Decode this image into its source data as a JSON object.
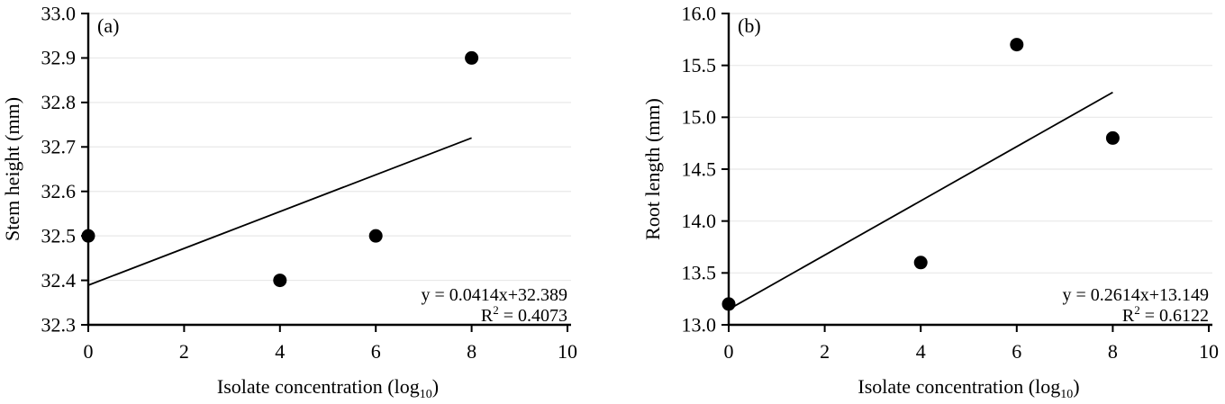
{
  "figure": {
    "background": "#ffffff",
    "colors": {
      "axis": "#000000",
      "grid": "#e8e8e8",
      "point": "#000000",
      "trendline": "#000000",
      "text": "#000000"
    }
  },
  "chart_data": [
    {
      "type": "scatter",
      "panel_label": "(a)",
      "ylabel": "Stem height (mm)",
      "xlabel_main": "Isolate concentration (log",
      "xlabel_sub": "10",
      "xlabel_close": ")",
      "x": [
        0,
        4,
        6,
        8
      ],
      "y": [
        32.5,
        32.4,
        32.5,
        32.9
      ],
      "xlim": [
        0,
        10
      ],
      "ylim": [
        32.3,
        33.0
      ],
      "xticks": [
        0,
        2,
        4,
        6,
        8,
        10
      ],
      "yticks": [
        32.3,
        32.4,
        32.5,
        32.6,
        32.7,
        32.8,
        32.9,
        33.0
      ],
      "ytick_decimals": 1,
      "grid": true,
      "legend": "none",
      "trendline": {
        "slope": 0.0414,
        "intercept": 32.389,
        "x_start": 0,
        "x_end": 8
      },
      "equation": "y = 0.0414x+32.389",
      "r_squared_base": "R",
      "r_squared_sup": "2",
      "r_squared_rest": " = 0.4073"
    },
    {
      "type": "scatter",
      "panel_label": "(b)",
      "ylabel": "Root length (mm)",
      "xlabel_main": "Isolate concentration (log",
      "xlabel_sub": "10",
      "xlabel_close": ")",
      "x": [
        0,
        4,
        6,
        8
      ],
      "y": [
        13.2,
        13.6,
        15.7,
        14.8
      ],
      "xlim": [
        0,
        10
      ],
      "ylim": [
        13.0,
        16.0
      ],
      "xticks": [
        0,
        2,
        4,
        6,
        8,
        10
      ],
      "yticks": [
        13.0,
        13.5,
        14.0,
        14.5,
        15.0,
        15.5,
        16.0
      ],
      "ytick_decimals": 1,
      "grid": true,
      "legend": "none",
      "trendline": {
        "slope": 0.2614,
        "intercept": 13.149,
        "x_start": 0,
        "x_end": 8
      },
      "equation": "y = 0.2614x+13.149",
      "r_squared_base": "R",
      "r_squared_sup": "2",
      "r_squared_rest": " = 0.6122"
    }
  ]
}
